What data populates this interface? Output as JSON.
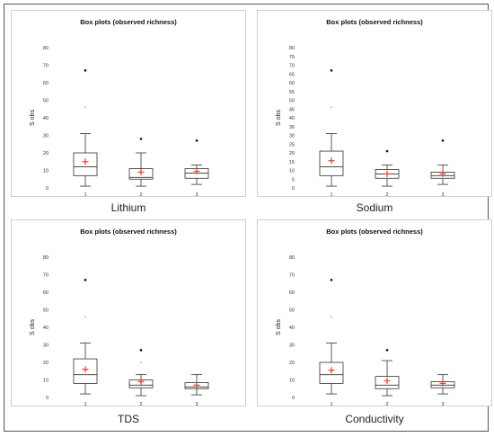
{
  "chart_data": [
    {
      "type": "boxplot",
      "title": "Box plots (observed richness)",
      "ylabel": "S obs",
      "caption": "Lithium",
      "ylim": [
        0,
        80
      ],
      "yticks": [
        "0",
        "10",
        "20",
        "30",
        "40",
        "50",
        "60",
        "70",
        "80"
      ],
      "categories": [
        "1",
        "2",
        "3"
      ],
      "boxes": [
        {
          "whisker_low": 1,
          "q1": 7,
          "median": 12,
          "q3": 20,
          "whisker_high": 31,
          "mean": 15,
          "outliers": [
            67
          ],
          "faint_outliers": [
            46
          ]
        },
        {
          "whisker_low": 1,
          "q1": 5,
          "median": 6,
          "q3": 11,
          "whisker_high": 20,
          "mean": 9,
          "outliers": [
            28
          ],
          "faint_outliers": []
        },
        {
          "whisker_low": 2,
          "q1": 5.5,
          "median": 8.5,
          "q3": 11,
          "whisker_high": 13,
          "mean": 9.5,
          "outliers": [
            27
          ],
          "faint_outliers": []
        }
      ]
    },
    {
      "type": "boxplot",
      "title": "Box plots (observed richness)",
      "ylabel": "S obs",
      "caption": "Sodium",
      "ylim": [
        0,
        80
      ],
      "yticks": [
        "0",
        "5",
        "10",
        "15",
        "20",
        "25",
        "30",
        "35",
        "40",
        "45",
        "50",
        "55",
        "60",
        "65",
        "70",
        "75",
        "80"
      ],
      "categories": [
        "1",
        "2",
        "3"
      ],
      "boxes": [
        {
          "whisker_low": 1,
          "q1": 7,
          "median": 12,
          "q3": 21,
          "whisker_high": 31,
          "mean": 15.5,
          "outliers": [
            67
          ],
          "faint_outliers": [
            46
          ]
        },
        {
          "whisker_low": 1,
          "q1": 5.5,
          "median": 8,
          "q3": 10.5,
          "whisker_high": 13,
          "mean": 8,
          "outliers": [
            21
          ],
          "faint_outliers": []
        },
        {
          "whisker_low": 2,
          "q1": 5.5,
          "median": 7,
          "q3": 9,
          "whisker_high": 13,
          "mean": 8,
          "outliers": [
            27
          ],
          "faint_outliers": []
        }
      ]
    },
    {
      "type": "boxplot",
      "title": "Box plots (observed richness)",
      "ylabel": "S obs",
      "caption": "TDS",
      "ylim": [
        0,
        80
      ],
      "yticks": [
        "0",
        "10",
        "20",
        "30",
        "40",
        "50",
        "60",
        "70",
        "80"
      ],
      "categories": [
        "1",
        "2",
        "3"
      ],
      "boxes": [
        {
          "whisker_low": 2,
          "q1": 8,
          "median": 13,
          "q3": 22,
          "whisker_high": 31,
          "mean": 16,
          "outliers": [
            67
          ],
          "faint_outliers": [
            46
          ]
        },
        {
          "whisker_low": 1,
          "q1": 5.5,
          "median": 7,
          "q3": 10,
          "whisker_high": 13,
          "mean": 9,
          "outliers": [
            27
          ],
          "faint_outliers": [
            20
          ]
        },
        {
          "whisker_low": 1.5,
          "q1": 5,
          "median": 6,
          "q3": 8.5,
          "whisker_high": 13,
          "mean": 7,
          "outliers": [],
          "faint_outliers": []
        }
      ]
    },
    {
      "type": "boxplot",
      "title": "Box plots (observed richness)",
      "ylabel": "S obs",
      "caption": "Conductivity",
      "ylim": [
        0,
        80
      ],
      "yticks": [
        "0",
        "10",
        "20",
        "30",
        "40",
        "50",
        "60",
        "70",
        "80"
      ],
      "categories": [
        "1",
        "2",
        "3"
      ],
      "boxes": [
        {
          "whisker_low": 2,
          "q1": 8,
          "median": 13,
          "q3": 20,
          "whisker_high": 31,
          "mean": 15.5,
          "outliers": [
            67
          ],
          "faint_outliers": [
            46
          ]
        },
        {
          "whisker_low": 1,
          "q1": 5,
          "median": 7,
          "q3": 12,
          "whisker_high": 21,
          "mean": 9.5,
          "outliers": [
            27
          ],
          "faint_outliers": []
        },
        {
          "whisker_low": 2,
          "q1": 5.5,
          "median": 7,
          "q3": 9,
          "whisker_high": 13,
          "mean": 8,
          "outliers": [],
          "faint_outliers": []
        }
      ]
    }
  ],
  "colors": {
    "mean_marker": "#e8483c",
    "outlier": "#111111",
    "faint_outlier": "#bbbbbb",
    "box_stroke": "#333333",
    "panel_border": "#cfcfcf"
  }
}
